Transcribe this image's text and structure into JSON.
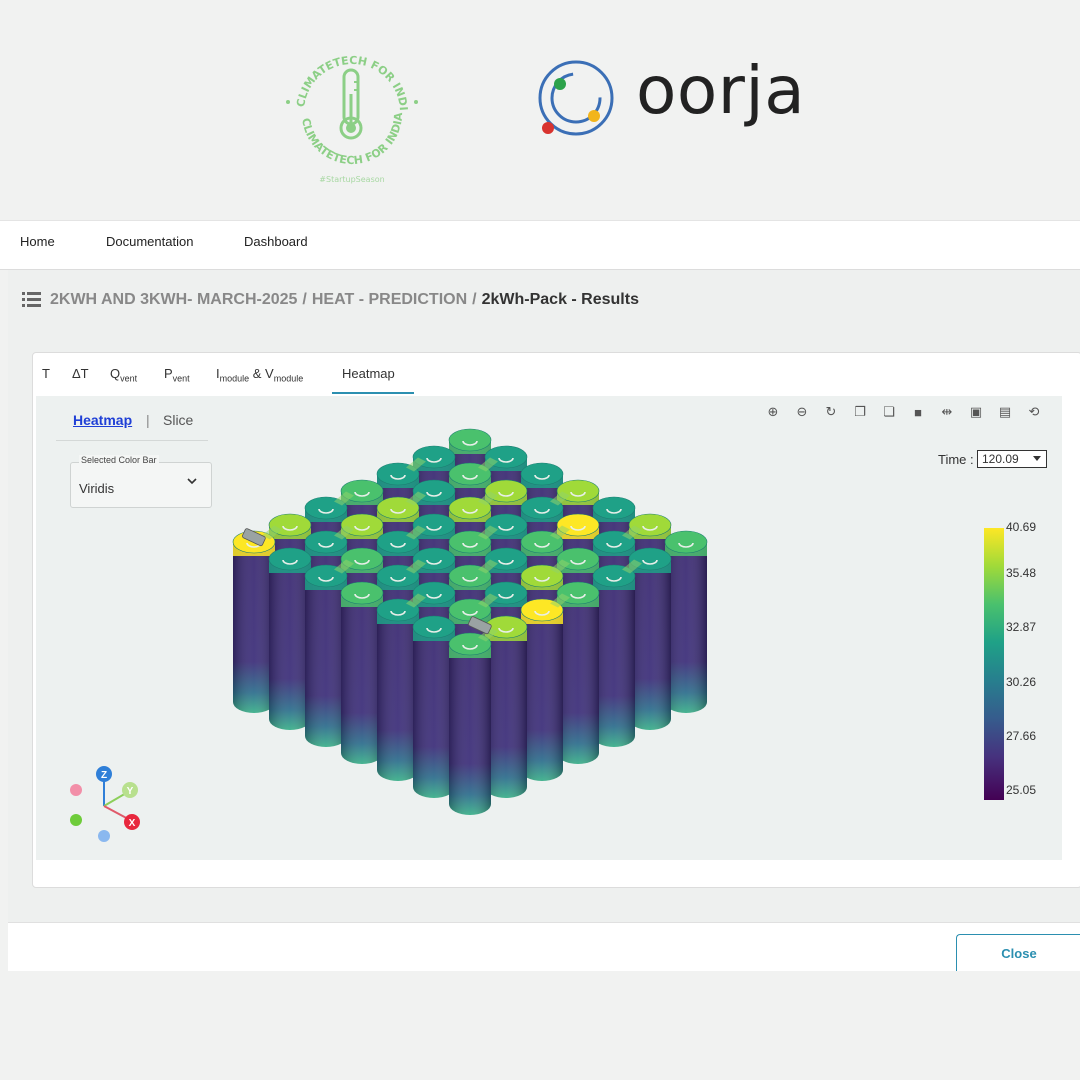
{
  "logos": {
    "climatetech_text": "CLIMATETECH FOR INDIA",
    "climatetech_hashtag": "#StartupSeason",
    "oorja_text": "oorja"
  },
  "nav": {
    "items": [
      "Home",
      "Documentation",
      "Dashboard"
    ]
  },
  "breadcrumb": {
    "parts": [
      "2KWH AND 3KWH- MARCH-2025",
      "HEAT - PREDICTION"
    ],
    "current": "2kWh-Pack - Results",
    "separator": "/"
  },
  "tabs": {
    "t": "T",
    "dt": "ΔT",
    "qvent_main": "Q",
    "qvent_sub": "vent",
    "pvent_main": "P",
    "pvent_sub": "vent",
    "iv_i": "I",
    "iv_isub": "module",
    "iv_amp": " & V",
    "iv_vsub": "module",
    "heatmap": "Heatmap",
    "active": "Heatmap"
  },
  "subtabs": {
    "heatmap": "Heatmap",
    "divider": "|",
    "slice": "Slice",
    "active": "Heatmap"
  },
  "color_bar_select": {
    "label": "Selected Color Bar",
    "value": "Viridis"
  },
  "toolbar_icons": [
    "zoom-in-icon",
    "zoom-out-icon",
    "rotate-icon",
    "view-front-icon",
    "view-back-icon",
    "view-top-icon",
    "flip-icon",
    "view-left-icon",
    "view-right-icon",
    "reset-icon"
  ],
  "time": {
    "label": "Time :",
    "value": "120.09"
  },
  "colorbar": {
    "ticks": [
      "40.69",
      "35.48",
      "32.87",
      "30.26",
      "27.66",
      "25.05"
    ],
    "colormap": "viridis",
    "max": 40.69,
    "min": 25.05
  },
  "axes": {
    "z": "Z",
    "y": "Y",
    "x": "X"
  },
  "close_label": "Close",
  "colors": {
    "accent": "#2b8fb0",
    "active_subtab": "#1f3fd6"
  }
}
